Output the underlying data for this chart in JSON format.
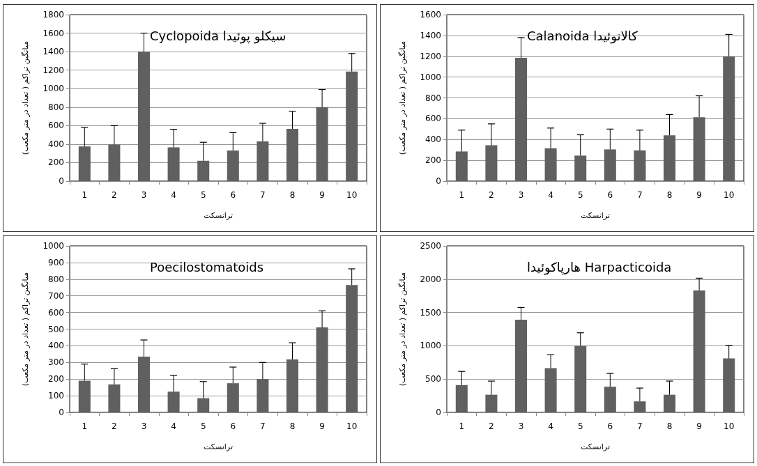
{
  "chart_data": [
    {
      "type": "bar",
      "title": "Cyclopoida سيكلو پوئيدا",
      "xlabel": "ترانسکت",
      "ylabel": "میانگین تراکم ( تعداد در متر مکعب)",
      "categories": [
        "1",
        "2",
        "3",
        "4",
        "5",
        "6",
        "7",
        "8",
        "9",
        "10"
      ],
      "color": "#606060",
      "values": [
        375,
        395,
        1400,
        365,
        220,
        330,
        430,
        565,
        800,
        1185
      ],
      "errors": [
        [
          375,
          580
        ],
        [
          395,
          600
        ],
        [
          1400,
          1600
        ],
        [
          365,
          560
        ],
        [
          220,
          420
        ],
        [
          330,
          525
        ],
        [
          430,
          625
        ],
        [
          565,
          755
        ],
        [
          800,
          990
        ],
        [
          1185,
          1380
        ]
      ],
      "ylim": [
        0,
        1800
      ],
      "yticks": [
        0,
        200,
        400,
        600,
        800,
        1000,
        1200,
        1400,
        1600,
        1800
      ],
      "grid": "y"
    },
    {
      "type": "bar",
      "title": "Calanoida کالانوئیدا",
      "xlabel": "ترانسکت",
      "ylabel": "میانگین تراکم ( تعداد در متر مکعب)",
      "categories": [
        "1",
        "2",
        "3",
        "4",
        "5",
        "6",
        "7",
        "8",
        "9",
        "10"
      ],
      "color": "#606060",
      "values": [
        285,
        345,
        1185,
        315,
        245,
        305,
        295,
        440,
        615,
        1200
      ],
      "errors": [
        [
          285,
          490
        ],
        [
          345,
          550
        ],
        [
          1185,
          1380
        ],
        [
          315,
          510
        ],
        [
          245,
          445
        ],
        [
          305,
          500
        ],
        [
          295,
          490
        ],
        [
          440,
          640
        ],
        [
          615,
          820
        ],
        [
          1200,
          1410
        ]
      ],
      "ylim": [
        0,
        1600
      ],
      "yticks": [
        0,
        200,
        400,
        600,
        800,
        1000,
        1200,
        1400,
        1600
      ],
      "grid": "y"
    },
    {
      "type": "bar",
      "title": "Poecilostomatoids",
      "xlabel": "ترانسکت",
      "ylabel": "میانگین تراکم ( تعداد در متر مکعب)",
      "categories": [
        "1",
        "2",
        "3",
        "4",
        "5",
        "6",
        "7",
        "8",
        "9",
        "10"
      ],
      "color": "#606060",
      "values": [
        190,
        168,
        335,
        125,
        85,
        175,
        200,
        318,
        510,
        765
      ],
      "errors": [
        [
          190,
          290
        ],
        [
          168,
          262
        ],
        [
          335,
          435
        ],
        [
          125,
          222
        ],
        [
          85,
          185
        ],
        [
          175,
          272
        ],
        [
          200,
          300
        ],
        [
          318,
          418
        ],
        [
          510,
          610
        ],
        [
          765,
          862
        ]
      ],
      "ylim": [
        0,
        1000
      ],
      "yticks": [
        0,
        100,
        200,
        300,
        400,
        500,
        600,
        700,
        800,
        900,
        1000
      ],
      "grid": "y"
    },
    {
      "type": "bar",
      "title": "هارپاکوئیدا Harpacticoida",
      "xlabel": "ترانسکت",
      "ylabel": "میانگین تراکم ( تعداد در متر مکعب)",
      "categories": [
        "1",
        "2",
        "3",
        "4",
        "5",
        "6",
        "7",
        "8",
        "9",
        "10"
      ],
      "color": "#606060",
      "values": [
        410,
        265,
        1390,
        665,
        1000,
        385,
        165,
        265,
        1830,
        810
      ],
      "errors": [
        [
          410,
          615
        ],
        [
          265,
          470
        ],
        [
          1390,
          1575
        ],
        [
          665,
          865
        ],
        [
          1000,
          1195
        ],
        [
          385,
          585
        ],
        [
          165,
          365
        ],
        [
          265,
          470
        ],
        [
          1830,
          2015
        ],
        [
          810,
          1005
        ]
      ],
      "ylim": [
        0,
        2500
      ],
      "yticks": [
        0,
        500,
        1000,
        1500,
        2000,
        2500
      ],
      "grid": "y"
    }
  ]
}
